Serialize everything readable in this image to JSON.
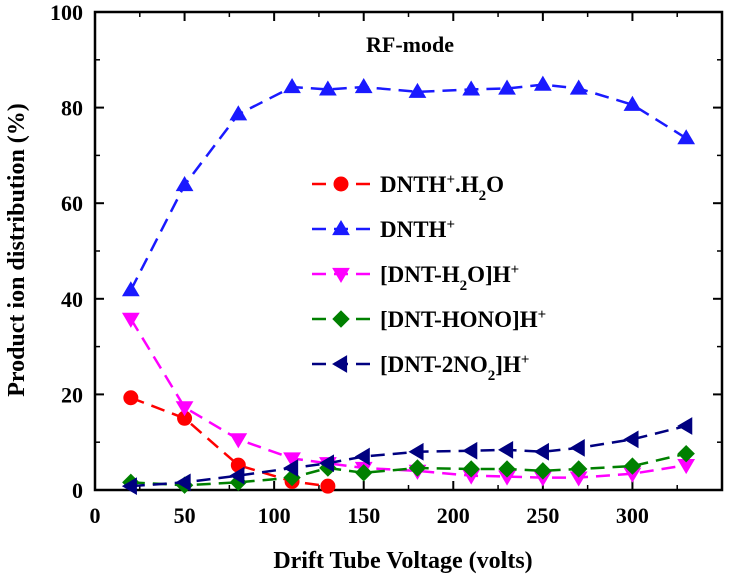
{
  "chart_data": {
    "type": "line",
    "title": "RF-mode",
    "xlabel": "Drift Tube Voltage (volts)",
    "ylabel": "Product ion distribution (%)",
    "xlim": [
      0,
      350
    ],
    "ylim": [
      0,
      100
    ],
    "xticks": [
      0,
      50,
      100,
      150,
      200,
      250,
      300
    ],
    "yticks": [
      0,
      20,
      40,
      60,
      80,
      100
    ],
    "grid": false,
    "legend_position": "center-right",
    "series": [
      {
        "name": "DNTH+.H2O",
        "color": "#ff0000",
        "marker": "circle",
        "x": [
          20,
          50,
          80,
          110,
          130
        ],
        "y": [
          19.3,
          15.0,
          5.2,
          1.8,
          0.8
        ]
      },
      {
        "name": "DNTH+",
        "color": "#1a1aff",
        "marker": "triangle-up",
        "x": [
          20,
          50,
          80,
          110,
          130,
          150,
          180,
          210,
          230,
          250,
          270,
          300,
          330
        ],
        "y": [
          41.8,
          63.8,
          78.6,
          84.3,
          83.8,
          84.3,
          83.3,
          83.8,
          84.0,
          84.8,
          84.0,
          80.6,
          73.6
        ]
      },
      {
        "name": "[DNT-H2O]H+",
        "color": "#ff00ff",
        "marker": "triangle-down",
        "x": [
          20,
          50,
          80,
          110,
          130,
          150,
          180,
          210,
          230,
          250,
          270,
          300,
          330
        ],
        "y": [
          35.8,
          17.3,
          10.6,
          6.6,
          5.6,
          4.6,
          4.0,
          3.0,
          2.8,
          2.6,
          2.6,
          3.4,
          5.2
        ]
      },
      {
        "name": "[DNT-HONO]H+",
        "color": "#008000",
        "marker": "diamond",
        "x": [
          20,
          50,
          80,
          110,
          130,
          150,
          180,
          210,
          230,
          250,
          270,
          300,
          330
        ],
        "y": [
          1.6,
          1.0,
          1.6,
          2.6,
          4.6,
          3.6,
          4.6,
          4.4,
          4.4,
          4.0,
          4.4,
          5.0,
          7.6
        ]
      },
      {
        "name": "[DNT-2NO2]H+",
        "color": "#000080",
        "marker": "triangle-left",
        "x": [
          20,
          50,
          80,
          110,
          130,
          150,
          180,
          210,
          230,
          250,
          270,
          300,
          330
        ],
        "y": [
          0.8,
          1.6,
          3.0,
          4.6,
          5.6,
          7.0,
          8.0,
          8.2,
          8.4,
          8.0,
          8.8,
          10.6,
          13.4
        ]
      }
    ]
  }
}
